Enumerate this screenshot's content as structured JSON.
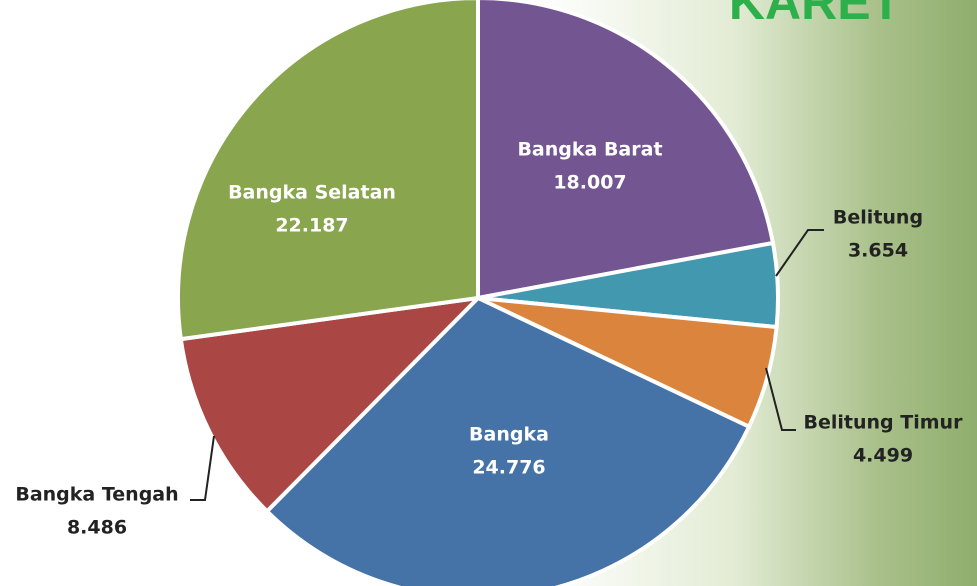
{
  "chart_data": {
    "type": "pie",
    "title": "KARET",
    "categories": [
      "Bangka Barat",
      "Belitung",
      "Belitung Timur",
      "Bangka",
      "Bangka Tengah",
      "Bangka Selatan"
    ],
    "values": [
      18007,
      3654,
      4499,
      24776,
      8486,
      22187
    ],
    "value_labels": [
      "18.007",
      "3.654",
      "4.499",
      "24.776",
      "8.486",
      "22.187"
    ],
    "colors": [
      "#725591",
      "#4198af",
      "#db843d",
      "#4572a7",
      "#aa4643",
      "#89a54e"
    ]
  }
}
